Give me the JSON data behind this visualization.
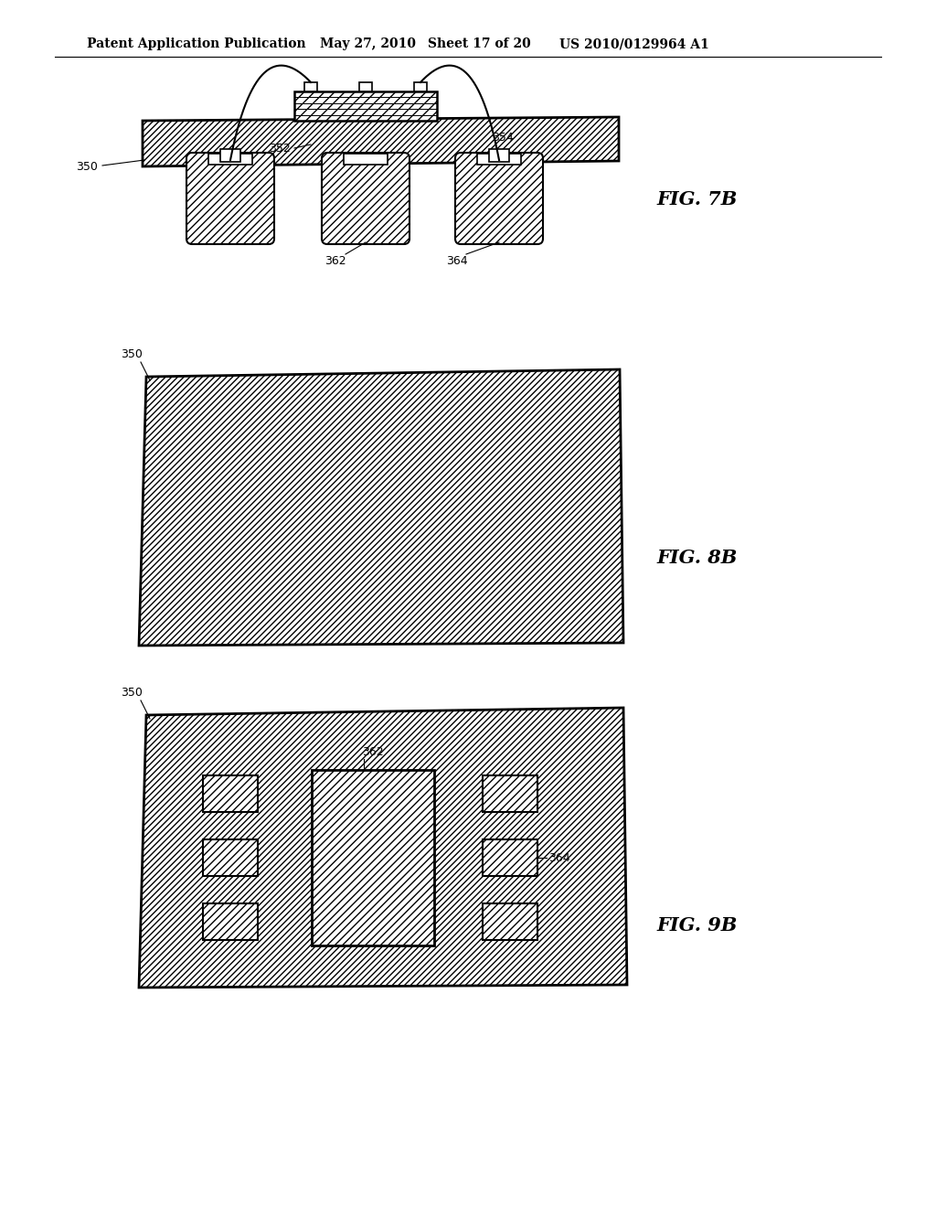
{
  "header_left": "Patent Application Publication",
  "header_mid1": "May 27, 2010",
  "header_mid2": "Sheet 17 of 20",
  "header_right": "US 2010/0129964 A1",
  "fig7b": "FIG. 7B",
  "fig8b": "FIG. 8B",
  "fig9b": "FIG. 9B",
  "lbl_350": "350",
  "lbl_352": "352",
  "lbl_354": "354",
  "lbl_362": "362",
  "lbl_364": "364",
  "black": "#000000",
  "white": "#ffffff"
}
